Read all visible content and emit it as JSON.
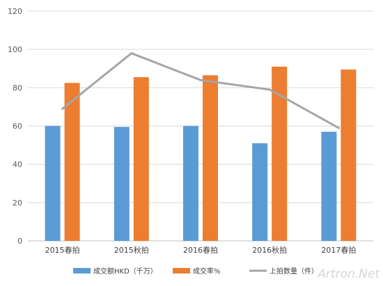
{
  "chart_data": {
    "type": "bar",
    "categories": [
      "2015春拍",
      "2015秋拍",
      "2016春拍",
      "2016秋拍",
      "2017春拍"
    ],
    "series": [
      {
        "name": "成交额HKD（千万）",
        "kind": "bar",
        "color": "#5B9BD5",
        "values": [
          60,
          59.5,
          60,
          51,
          57
        ]
      },
      {
        "name": "成交率%",
        "kind": "bar",
        "color": "#ED7D31",
        "values": [
          82.5,
          85.5,
          86.5,
          91,
          89.5
        ]
      },
      {
        "name": "上拍数量（件）",
        "kind": "line",
        "color": "#A5A5A5",
        "values": [
          69,
          98,
          84,
          79,
          59
        ]
      }
    ],
    "ylim": [
      0,
      120
    ],
    "yticks": [
      0,
      20,
      40,
      60,
      80,
      100,
      120
    ],
    "grid": true,
    "legend_position": "bottom"
  },
  "watermark": "Artron.Net"
}
